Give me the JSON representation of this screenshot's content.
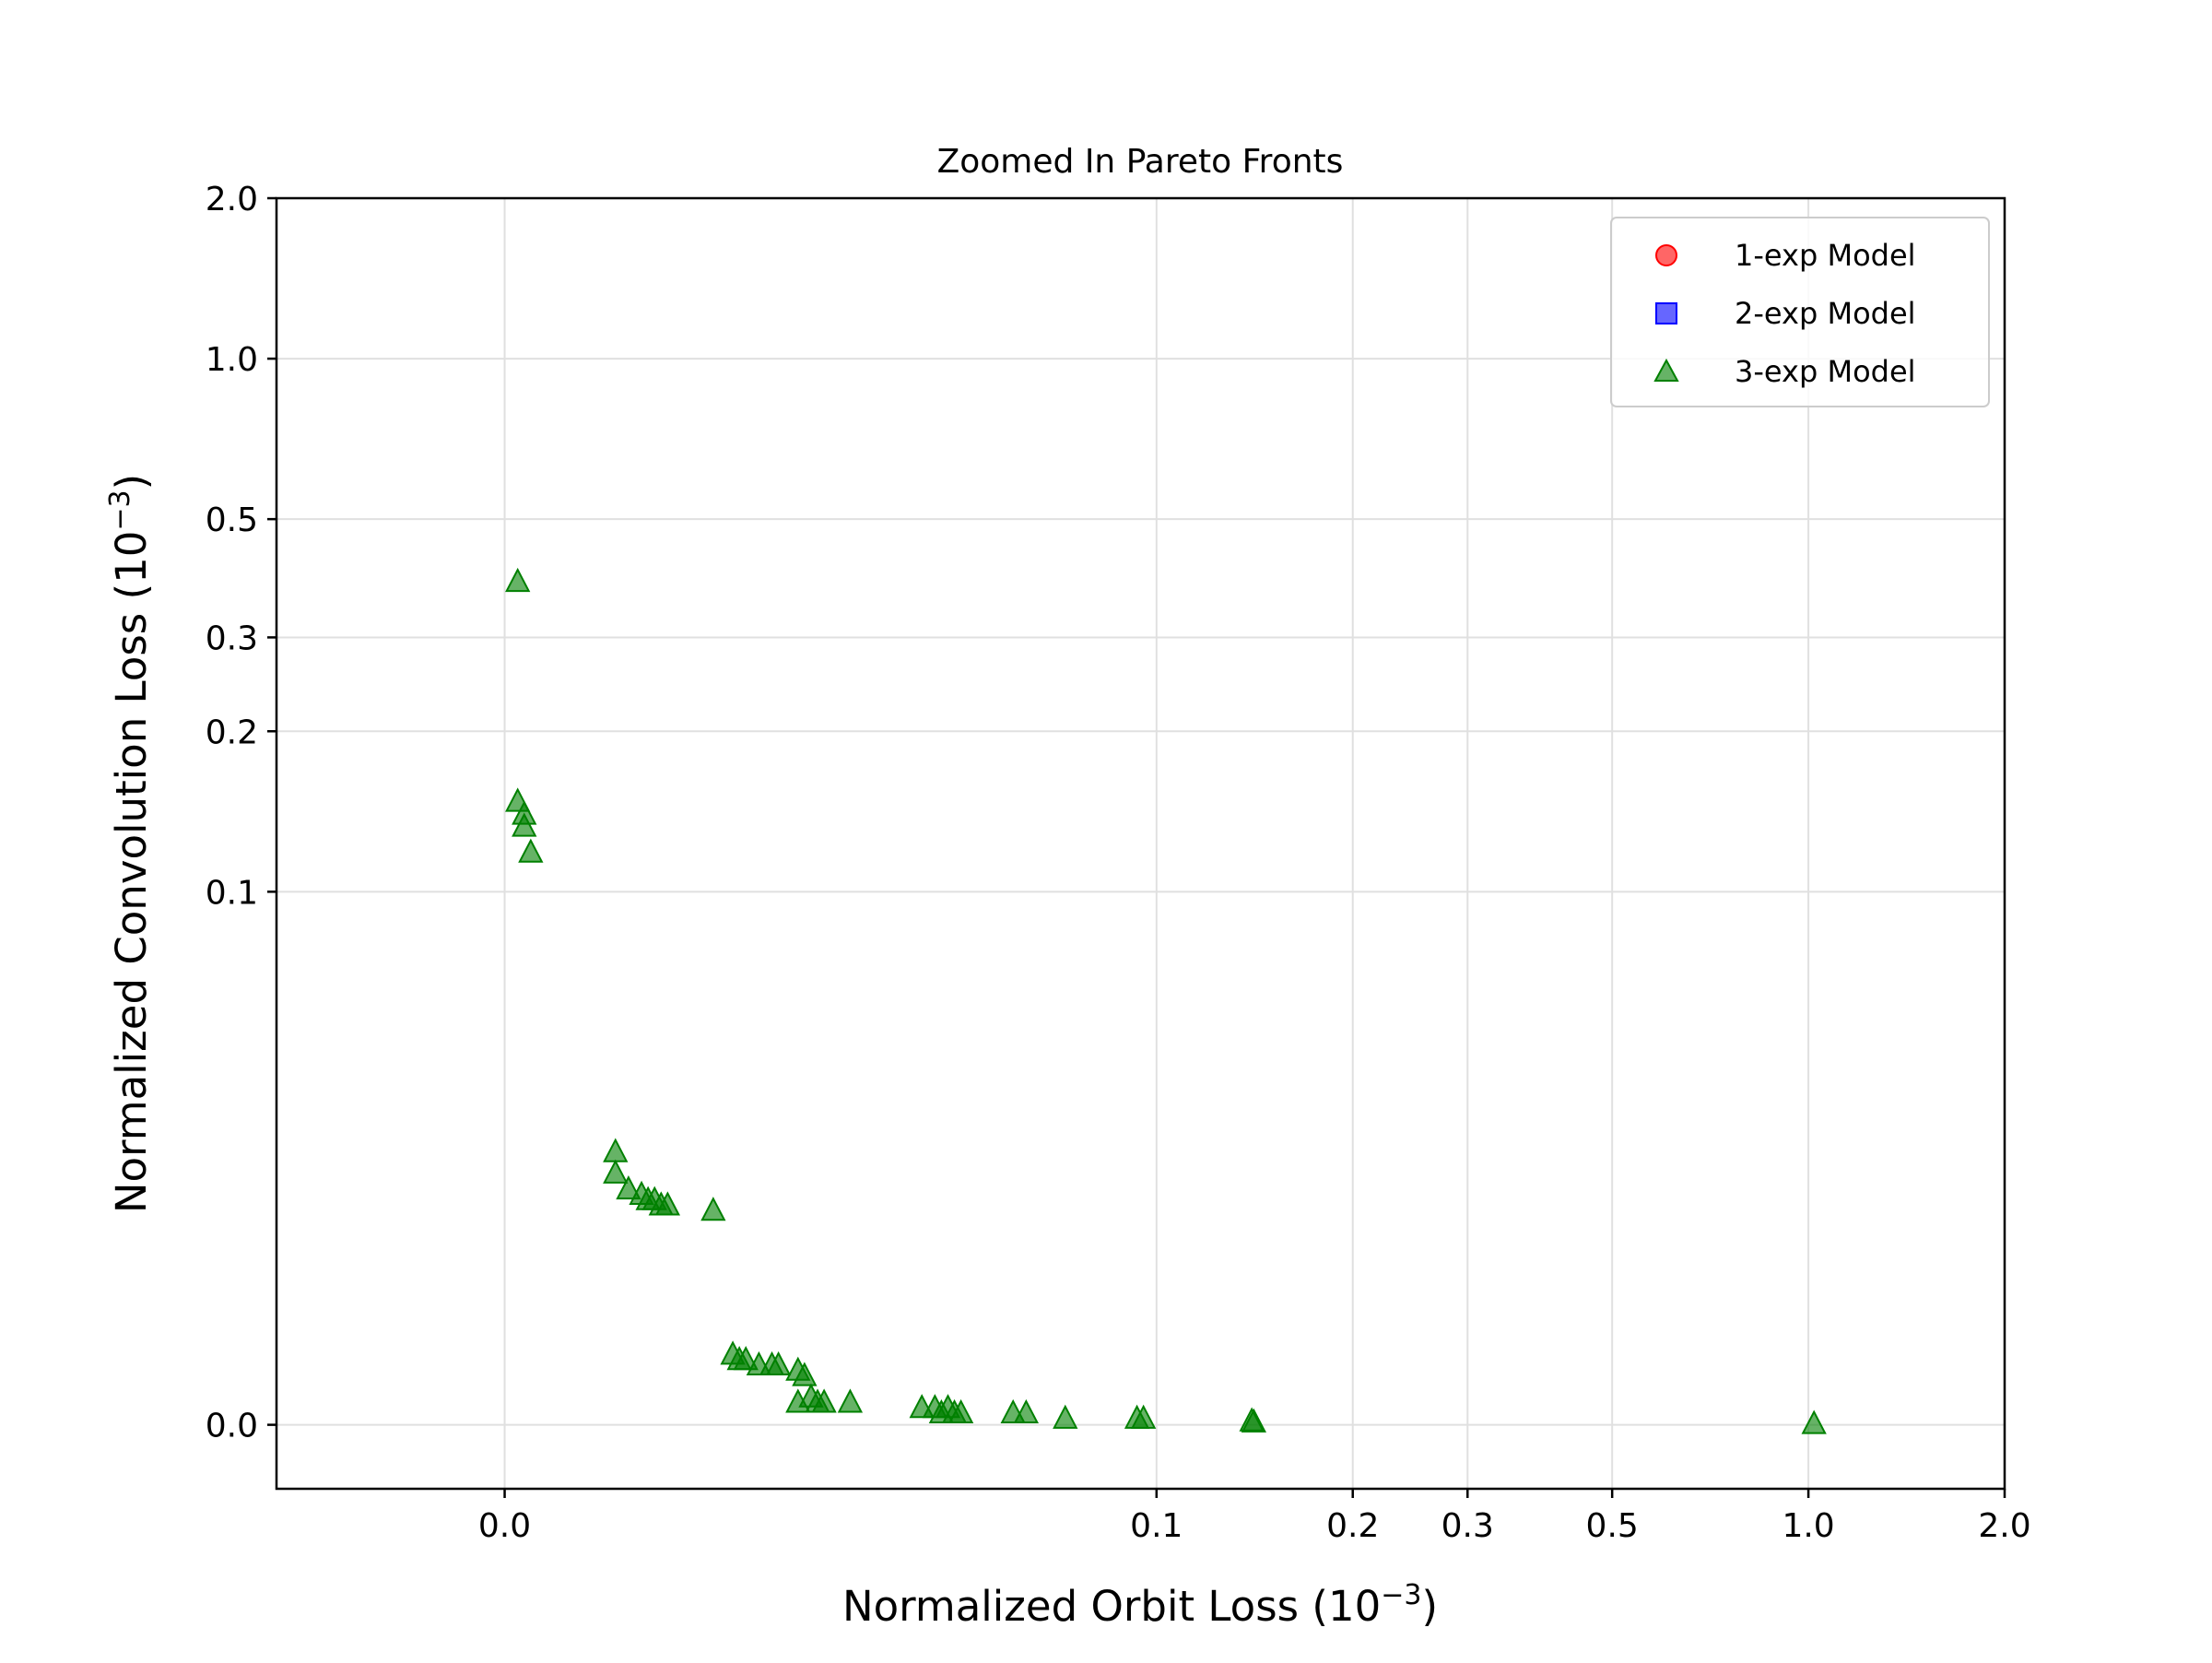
{
  "chart_data": {
    "type": "scatter",
    "title": "Zoomed In Pareto Fronts",
    "xlabel": "Normalized Orbit Loss (10",
    "ylabel": "Normalized Convolution Loss (10",
    "axis_unit_exponent": "−3",
    "x_scale": "symlog",
    "y_scale": "symlog",
    "xlim": [
      -0.035,
      2.0
    ],
    "ylim": [
      -0.012,
      2.0
    ],
    "x_ticks": [
      0.0,
      0.1,
      0.2,
      0.3,
      0.5,
      1.0,
      2.0
    ],
    "y_ticks": [
      0.0,
      0.1,
      0.2,
      0.3,
      0.5,
      1.0,
      2.0
    ],
    "x_tick_labels": [
      "0.0",
      "0.1",
      "0.2",
      "0.3",
      "0.5",
      "1.0",
      "2.0"
    ],
    "y_tick_labels": [
      "0.0",
      "0.1",
      "0.2",
      "0.3",
      "0.5",
      "1.0",
      "2.0"
    ],
    "grid": true,
    "legend_position": "top-right",
    "series": [
      {
        "name": "1-exp Model",
        "marker": "circle",
        "color": "#ff0000",
        "x": [],
        "y": []
      },
      {
        "name": "2-exp Model",
        "marker": "square",
        "color": "#0000ff",
        "x": [],
        "y": []
      },
      {
        "name": "3-exp Model",
        "marker": "triangle",
        "color": "#008000",
        "x": [
          0.002,
          0.002,
          0.003,
          0.003,
          0.004,
          0.017,
          0.017,
          0.019,
          0.021,
          0.022,
          0.023,
          0.024,
          0.025,
          0.032,
          0.035,
          0.036,
          0.037,
          0.039,
          0.041,
          0.042,
          0.045,
          0.045,
          0.046,
          0.047,
          0.048,
          0.049,
          0.053,
          0.064,
          0.066,
          0.067,
          0.068,
          0.069,
          0.07,
          0.078,
          0.08,
          0.086,
          0.097,
          0.098,
          0.14,
          0.141,
          1.02
        ],
        "y": [
          0.38,
          0.147,
          0.139,
          0.132,
          0.118,
          0.051,
          0.047,
          0.044,
          0.043,
          0.042,
          0.042,
          0.041,
          0.041,
          0.04,
          0.013,
          0.012,
          0.012,
          0.011,
          0.011,
          0.011,
          0.01,
          0.004,
          0.009,
          0.005,
          0.004,
          0.004,
          0.004,
          0.003,
          0.003,
          0.002,
          0.003,
          0.002,
          0.002,
          0.002,
          0.002,
          0.001,
          0.001,
          0.001,
          0.0005,
          0.0003,
          0.0
        ]
      }
    ]
  }
}
